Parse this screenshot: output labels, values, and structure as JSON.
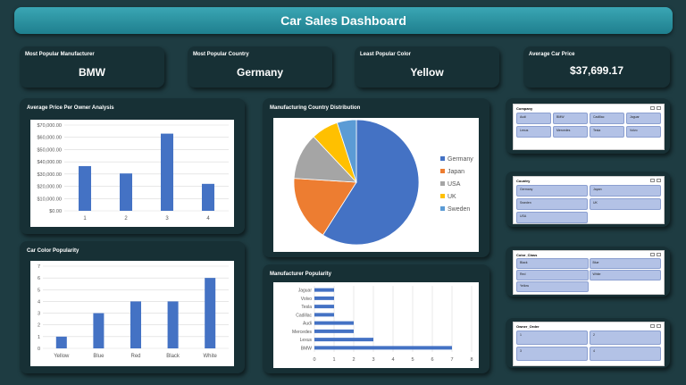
{
  "title": "Car Sales Dashboard",
  "kpis": [
    {
      "label": "Most Popular Manufacturer",
      "value": "BMW"
    },
    {
      "label": "Most Popular Country",
      "value": "Germany"
    },
    {
      "label": "Least Popular Color",
      "value": "Yellow"
    },
    {
      "label": "Average Car Price",
      "value": "$37,699.17"
    }
  ],
  "chart_data": [
    {
      "type": "bar",
      "title": "Average Price Per Owner Analysis",
      "categories": [
        "1",
        "2",
        "3",
        "4"
      ],
      "values": [
        36500,
        30500,
        63000,
        22000
      ],
      "y_ticks": [
        "$0.00",
        "$10,000.00",
        "$20,000.00",
        "$30,000.00",
        "$40,000.00",
        "$50,000.00",
        "$60,000.00",
        "$70,000.00"
      ],
      "ylim": [
        0,
        70000
      ],
      "color": "#4472c4",
      "grid": true
    },
    {
      "type": "pie",
      "title": "Manufacturing Country Distribution",
      "categories": [
        "Germany",
        "Japan",
        "USA",
        "UK",
        "Sweden"
      ],
      "values": [
        59,
        17,
        12,
        7,
        5
      ],
      "colors": [
        "#4472c4",
        "#ed7d31",
        "#a5a5a5",
        "#ffc000",
        "#5b9bd5"
      ],
      "legend": "right"
    },
    {
      "type": "bar",
      "title": "Car Color Popularity",
      "categories": [
        "Yellow",
        "Blue",
        "Red",
        "Black",
        "White"
      ],
      "values": [
        1,
        3,
        4,
        4,
        6
      ],
      "y_ticks": [
        "0",
        "1",
        "2",
        "3",
        "4",
        "5",
        "6",
        "7"
      ],
      "ylim": [
        0,
        7
      ],
      "color": "#4472c4",
      "grid": true
    },
    {
      "type": "bar",
      "orientation": "horizontal",
      "title": "Manufacturer Popularity",
      "categories": [
        "Jaguar",
        "Volvo",
        "Tesla",
        "Cadillac",
        "Audi",
        "Mercedes",
        "Lexus",
        "BMW"
      ],
      "values": [
        1,
        1,
        1,
        1,
        2,
        2,
        3,
        7
      ],
      "x_ticks": [
        "0",
        "1",
        "2",
        "3",
        "4",
        "5",
        "6",
        "7",
        "8"
      ],
      "xlim": [
        0,
        8
      ],
      "color": "#4472c4",
      "grid": true
    }
  ],
  "slicers": [
    {
      "header": "Company",
      "items": [
        "Audi",
        "BMW",
        "Cadillac",
        "Jaguar",
        "Lexus",
        "Mercedes",
        "Tesla",
        "Volvo"
      ]
    },
    {
      "header": "Country",
      "items": [
        "Germany",
        "Japan",
        "Sweden",
        "UK",
        "USA"
      ]
    },
    {
      "header": "Color_Class",
      "items": [
        "Black",
        "Blue",
        "Red",
        "White",
        "Yellow"
      ]
    },
    {
      "header": "Owner_Order",
      "items": [
        "1",
        "2",
        "3",
        "4"
      ]
    }
  ]
}
